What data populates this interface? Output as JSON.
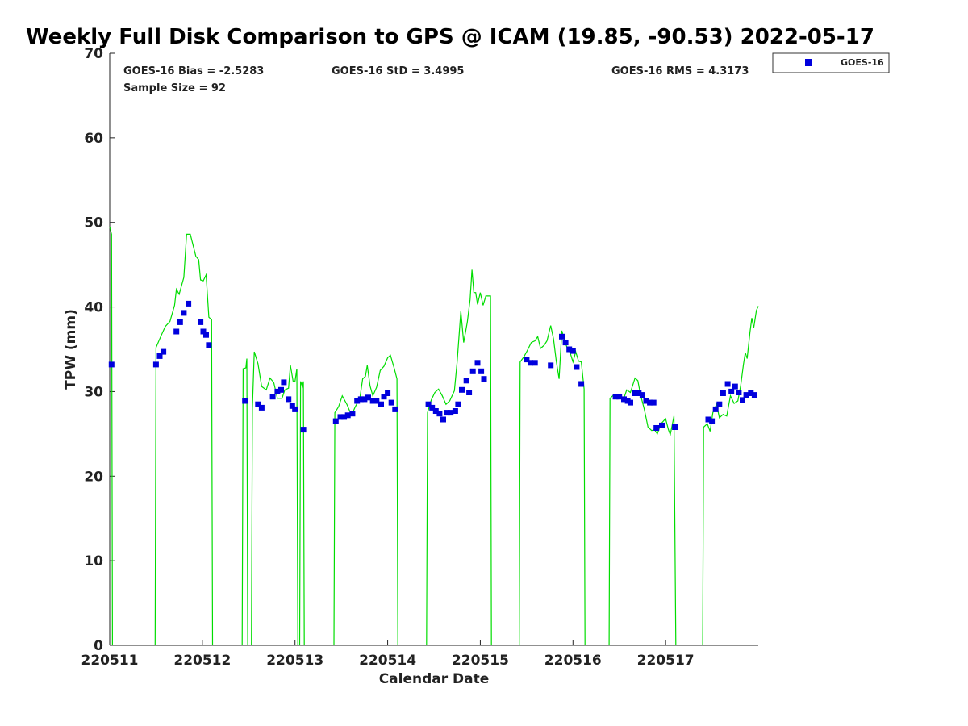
{
  "chart_data": {
    "type": "scatter",
    "title": "Weekly Full Disk Comparison to GPS @ ICAM (19.85, -90.53) 2022-05-17",
    "xlabel": "Calendar Date",
    "ylabel": "TPW (mm)",
    "xlim": [
      0,
      7
    ],
    "ylim": [
      0,
      70
    ],
    "yticks": [
      0,
      10,
      20,
      30,
      40,
      50,
      60,
      70
    ],
    "xticks": [
      {
        "value": 0,
        "label": "220511"
      },
      {
        "value": 1,
        "label": "220512"
      },
      {
        "value": 2,
        "label": "220513"
      },
      {
        "value": 3,
        "label": "220514"
      },
      {
        "value": 4,
        "label": "220515"
      },
      {
        "value": 5,
        "label": "220516"
      },
      {
        "value": 6,
        "label": "220517"
      }
    ],
    "stats": {
      "bias": "GOES-16 Bias = -2.5283",
      "std": "GOES-16 StD = 3.4995",
      "rms": "GOES-16 RMS = 4.3173",
      "sample": "Sample Size = 92"
    },
    "legend": {
      "position": "top-right, outside plot",
      "entries": [
        "GOES-16"
      ]
    },
    "colors": {
      "gps_line": "#00dd00",
      "goes_points": "#0000dd"
    },
    "series": [
      {
        "name": "GOES-16",
        "kind": "scatter",
        "points": [
          [
            0.02,
            33.2
          ],
          [
            0.5,
            33.2
          ],
          [
            0.54,
            34.2
          ],
          [
            0.58,
            34.7
          ],
          [
            0.72,
            37.1
          ],
          [
            0.76,
            38.2
          ],
          [
            0.8,
            39.3
          ],
          [
            0.85,
            40.4
          ],
          [
            0.98,
            38.2
          ],
          [
            1.01,
            37.1
          ],
          [
            1.04,
            36.7
          ],
          [
            1.07,
            35.5
          ],
          [
            1.46,
            28.9
          ],
          [
            1.6,
            28.5
          ],
          [
            1.64,
            28.1
          ],
          [
            1.76,
            29.4
          ],
          [
            1.81,
            30.0
          ],
          [
            1.85,
            30.2
          ],
          [
            1.88,
            31.1
          ],
          [
            1.93,
            29.1
          ],
          [
            1.97,
            28.3
          ],
          [
            2.0,
            27.9
          ],
          [
            2.09,
            25.5
          ],
          [
            2.44,
            26.5
          ],
          [
            2.49,
            27.0
          ],
          [
            2.53,
            27.0
          ],
          [
            2.57,
            27.2
          ],
          [
            2.62,
            27.4
          ],
          [
            2.67,
            28.9
          ],
          [
            2.71,
            29.1
          ],
          [
            2.75,
            29.1
          ],
          [
            2.79,
            29.3
          ],
          [
            2.84,
            28.9
          ],
          [
            2.88,
            28.9
          ],
          [
            2.93,
            28.5
          ],
          [
            2.96,
            29.4
          ],
          [
            3.0,
            29.8
          ],
          [
            3.04,
            28.7
          ],
          [
            3.08,
            27.9
          ],
          [
            3.44,
            28.5
          ],
          [
            3.48,
            28.1
          ],
          [
            3.52,
            27.7
          ],
          [
            3.56,
            27.4
          ],
          [
            3.6,
            26.7
          ],
          [
            3.64,
            27.5
          ],
          [
            3.68,
            27.5
          ],
          [
            3.73,
            27.7
          ],
          [
            3.76,
            28.5
          ],
          [
            3.8,
            30.2
          ],
          [
            3.85,
            31.3
          ],
          [
            3.88,
            29.9
          ],
          [
            3.92,
            32.4
          ],
          [
            3.97,
            33.4
          ],
          [
            4.01,
            32.4
          ],
          [
            4.04,
            31.5
          ],
          [
            4.5,
            33.8
          ],
          [
            4.54,
            33.4
          ],
          [
            4.59,
            33.4
          ],
          [
            4.76,
            33.1
          ],
          [
            4.88,
            36.5
          ],
          [
            4.92,
            35.8
          ],
          [
            4.96,
            35.0
          ],
          [
            5.0,
            34.8
          ],
          [
            5.04,
            32.9
          ],
          [
            5.09,
            30.9
          ],
          [
            5.46,
            29.4
          ],
          [
            5.5,
            29.4
          ],
          [
            5.55,
            29.1
          ],
          [
            5.59,
            28.9
          ],
          [
            5.62,
            28.7
          ],
          [
            5.67,
            29.8
          ],
          [
            5.71,
            29.8
          ],
          [
            5.75,
            29.6
          ],
          [
            5.79,
            28.9
          ],
          [
            5.83,
            28.7
          ],
          [
            5.87,
            28.7
          ],
          [
            5.9,
            25.7
          ],
          [
            5.96,
            26.0
          ],
          [
            6.1,
            25.8
          ],
          [
            6.46,
            26.7
          ],
          [
            6.5,
            26.5
          ],
          [
            6.54,
            27.9
          ],
          [
            6.58,
            28.5
          ],
          [
            6.62,
            29.8
          ],
          [
            6.67,
            30.9
          ],
          [
            6.71,
            30.0
          ],
          [
            6.75,
            30.6
          ],
          [
            6.79,
            29.9
          ],
          [
            6.83,
            29.0
          ],
          [
            6.87,
            29.6
          ],
          [
            6.92,
            29.8
          ],
          [
            6.96,
            29.6
          ]
        ]
      },
      {
        "name": "",
        "kind": "line",
        "segments": [
          [
            [
              0.0,
              49.5
            ],
            [
              0.02,
              48.6
            ],
            [
              0.03,
              0
            ]
          ],
          [
            [
              0.49,
              0
            ],
            [
              0.5,
              35.2
            ],
            [
              0.55,
              36.5
            ],
            [
              0.6,
              37.7
            ],
            [
              0.65,
              38.3
            ],
            [
              0.7,
              40.2
            ],
            [
              0.72,
              42.1
            ],
            [
              0.75,
              41.5
            ],
            [
              0.8,
              43.5
            ],
            [
              0.83,
              48.6
            ],
            [
              0.87,
              48.6
            ],
            [
              0.93,
              46.0
            ],
            [
              0.96,
              45.6
            ],
            [
              0.98,
              43.2
            ],
            [
              1.01,
              43.1
            ],
            [
              1.04,
              43.8
            ],
            [
              1.07,
              38.8
            ],
            [
              1.1,
              38.5
            ],
            [
              1.11,
              0
            ]
          ],
          [
            [
              1.43,
              0
            ],
            [
              1.44,
              32.7
            ],
            [
              1.47,
              32.8
            ],
            [
              1.48,
              33.9
            ],
            [
              1.49,
              0
            ]
          ],
          [
            [
              1.53,
              0
            ],
            [
              1.54,
              28.0
            ],
            [
              1.56,
              34.7
            ],
            [
              1.6,
              33.3
            ],
            [
              1.64,
              30.6
            ],
            [
              1.69,
              30.2
            ],
            [
              1.73,
              31.6
            ],
            [
              1.77,
              31.1
            ],
            [
              1.81,
              29.2
            ],
            [
              1.86,
              29.2
            ],
            [
              1.89,
              30.2
            ],
            [
              1.93,
              30.4
            ],
            [
              1.95,
              33.1
            ],
            [
              1.98,
              31.2
            ],
            [
              2.0,
              31.2
            ],
            [
              2.02,
              32.7
            ],
            [
              2.03,
              0
            ]
          ],
          [
            [
              2.05,
              0
            ],
            [
              2.06,
              31.2
            ],
            [
              2.08,
              30.6
            ],
            [
              2.09,
              31.2
            ],
            [
              2.1,
              0
            ]
          ],
          [
            [
              2.42,
              0
            ],
            [
              2.43,
              27.5
            ],
            [
              2.47,
              28.2
            ],
            [
              2.51,
              29.5
            ],
            [
              2.56,
              28.5
            ],
            [
              2.61,
              27.2
            ],
            [
              2.65,
              28.2
            ],
            [
              2.7,
              29.2
            ],
            [
              2.73,
              31.5
            ],
            [
              2.76,
              31.8
            ],
            [
              2.78,
              33.1
            ],
            [
              2.81,
              30.7
            ],
            [
              2.84,
              29.5
            ],
            [
              2.88,
              30.5
            ],
            [
              2.92,
              32.5
            ],
            [
              2.96,
              33.0
            ],
            [
              3.0,
              34.0
            ],
            [
              3.03,
              34.3
            ],
            [
              3.07,
              32.8
            ],
            [
              3.1,
              31.5
            ],
            [
              3.11,
              0
            ]
          ],
          [
            [
              3.42,
              0
            ],
            [
              3.43,
              27.5
            ],
            [
              3.47,
              29.0
            ],
            [
              3.51,
              29.9
            ],
            [
              3.55,
              30.3
            ],
            [
              3.59,
              29.5
            ],
            [
              3.63,
              28.5
            ],
            [
              3.67,
              28.9
            ],
            [
              3.72,
              30.1
            ],
            [
              3.75,
              33.5
            ],
            [
              3.79,
              39.5
            ],
            [
              3.82,
              35.8
            ],
            [
              3.86,
              38.2
            ],
            [
              3.89,
              40.9
            ],
            [
              3.91,
              44.4
            ],
            [
              3.93,
              41.7
            ],
            [
              3.95,
              41.7
            ],
            [
              3.97,
              40.3
            ],
            [
              4.0,
              41.7
            ],
            [
              4.03,
              40.2
            ],
            [
              4.06,
              41.3
            ],
            [
              4.11,
              41.3
            ],
            [
              4.12,
              0
            ]
          ],
          [
            [
              4.42,
              0
            ],
            [
              4.43,
              33.5
            ],
            [
              4.47,
              34.1
            ],
            [
              4.5,
              34.7
            ],
            [
              4.55,
              35.8
            ],
            [
              4.59,
              36.0
            ],
            [
              4.62,
              36.5
            ],
            [
              4.65,
              35.1
            ],
            [
              4.69,
              35.5
            ],
            [
              4.72,
              36.0
            ],
            [
              4.76,
              37.8
            ],
            [
              4.79,
              36.2
            ],
            [
              4.82,
              33.6
            ],
            [
              4.85,
              31.5
            ],
            [
              4.88,
              37.2
            ],
            [
              4.91,
              36.0
            ],
            [
              4.94,
              35.1
            ],
            [
              4.97,
              34.6
            ],
            [
              5.0,
              33.5
            ],
            [
              5.03,
              34.7
            ],
            [
              5.06,
              33.6
            ],
            [
              5.09,
              33.5
            ],
            [
              5.12,
              30.3
            ],
            [
              5.13,
              0
            ]
          ],
          [
            [
              5.39,
              0
            ],
            [
              5.4,
              29.2
            ],
            [
              5.44,
              29.6
            ],
            [
              5.47,
              29.6
            ],
            [
              5.51,
              29.7
            ],
            [
              5.54,
              28.9
            ],
            [
              5.58,
              30.2
            ],
            [
              5.62,
              29.9
            ],
            [
              5.67,
              31.6
            ],
            [
              5.7,
              31.3
            ],
            [
              5.73,
              29.6
            ],
            [
              5.77,
              27.9
            ],
            [
              5.81,
              25.8
            ],
            [
              5.85,
              25.4
            ],
            [
              5.88,
              25.5
            ],
            [
              5.91,
              25.0
            ],
            [
              5.95,
              26.2
            ],
            [
              6.0,
              26.8
            ],
            [
              6.03,
              25.5
            ],
            [
              6.05,
              24.9
            ],
            [
              6.09,
              27.1
            ],
            [
              6.11,
              0
            ]
          ],
          [
            [
              6.4,
              0
            ],
            [
              6.41,
              25.8
            ],
            [
              6.45,
              26.2
            ],
            [
              6.48,
              25.3
            ],
            [
              6.51,
              27.5
            ],
            [
              6.55,
              28.5
            ],
            [
              6.58,
              26.9
            ],
            [
              6.62,
              27.3
            ],
            [
              6.66,
              27.1
            ],
            [
              6.7,
              29.5
            ],
            [
              6.74,
              28.6
            ],
            [
              6.78,
              28.9
            ],
            [
              6.81,
              30.7
            ],
            [
              6.84,
              33.2
            ],
            [
              6.86,
              34.6
            ],
            [
              6.88,
              33.9
            ],
            [
              6.91,
              37.0
            ],
            [
              6.93,
              38.7
            ],
            [
              6.95,
              37.5
            ],
            [
              6.98,
              39.6
            ],
            [
              7.0,
              40.1
            ]
          ]
        ]
      }
    ]
  }
}
